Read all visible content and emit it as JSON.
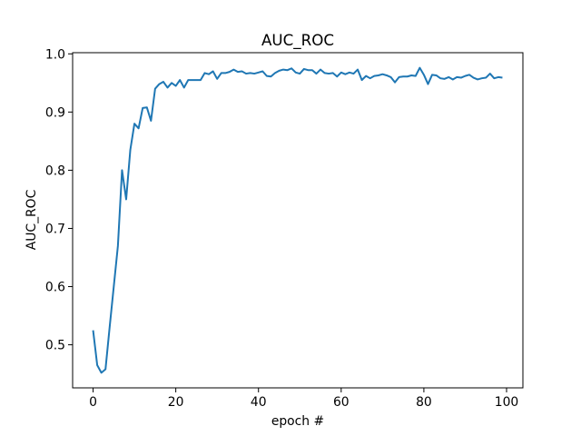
{
  "chart_data": {
    "type": "line",
    "title": "AUC_ROC",
    "xlabel": "epoch #",
    "ylabel": "AUC_ROC",
    "x": [
      0,
      1,
      2,
      3,
      4,
      5,
      6,
      7,
      8,
      9,
      10,
      11,
      12,
      13,
      14,
      15,
      16,
      17,
      18,
      19,
      20,
      21,
      22,
      23,
      24,
      25,
      26,
      27,
      28,
      29,
      30,
      31,
      32,
      33,
      34,
      35,
      36,
      37,
      38,
      39,
      40,
      41,
      42,
      43,
      44,
      45,
      46,
      47,
      48,
      49,
      50,
      51,
      52,
      53,
      54,
      55,
      56,
      57,
      58,
      59,
      60,
      61,
      62,
      63,
      64,
      65,
      66,
      67,
      68,
      69,
      70,
      71,
      72,
      73,
      74,
      75,
      76,
      77,
      78,
      79,
      80,
      81,
      82,
      83,
      84,
      85,
      86,
      87,
      88,
      89,
      90,
      91,
      92,
      93,
      94,
      95,
      96,
      97,
      98,
      99
    ],
    "series": [
      {
        "color": "#1f77b4",
        "values": [
          0.525,
          0.465,
          0.452,
          0.458,
          0.53,
          0.6,
          0.67,
          0.8,
          0.75,
          0.835,
          0.88,
          0.872,
          0.907,
          0.908,
          0.885,
          0.94,
          0.948,
          0.952,
          0.942,
          0.95,
          0.945,
          0.955,
          0.942,
          0.955,
          0.955,
          0.955,
          0.955,
          0.967,
          0.965,
          0.97,
          0.957,
          0.967,
          0.967,
          0.969,
          0.973,
          0.969,
          0.97,
          0.966,
          0.967,
          0.966,
          0.968,
          0.97,
          0.962,
          0.961,
          0.967,
          0.971,
          0.973,
          0.972,
          0.975,
          0.968,
          0.966,
          0.974,
          0.972,
          0.972,
          0.966,
          0.973,
          0.967,
          0.966,
          0.967,
          0.961,
          0.968,
          0.965,
          0.968,
          0.966,
          0.973,
          0.955,
          0.962,
          0.958,
          0.962,
          0.963,
          0.965,
          0.963,
          0.96,
          0.951,
          0.96,
          0.961,
          0.961,
          0.963,
          0.962,
          0.976,
          0.964,
          0.948,
          0.964,
          0.963,
          0.958,
          0.957,
          0.96,
          0.956,
          0.96,
          0.959,
          0.962,
          0.964,
          0.959,
          0.956,
          0.958,
          0.959,
          0.966,
          0.958,
          0.96,
          0.959
        ]
      }
    ],
    "xlim": [
      -4.95,
      103.95
    ],
    "ylim": [
      0.426,
      1.002
    ],
    "xticks": [
      0,
      20,
      40,
      60,
      80,
      100
    ],
    "yticks": [
      0.5,
      0.6,
      0.7,
      0.8,
      0.9,
      {
        "value": 1,
        "label": "1.0"
      }
    ],
    "grid": false
  }
}
